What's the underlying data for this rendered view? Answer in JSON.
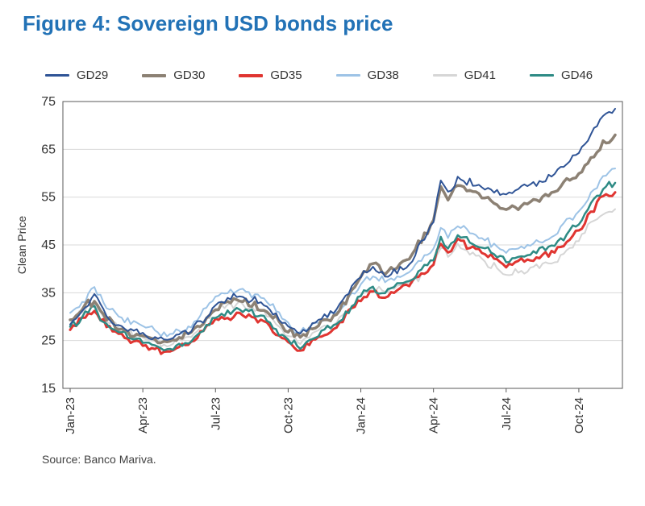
{
  "page": {
    "title": "Figure 4: Sovereign USD bonds price",
    "source": "Source: Banco Mariva.",
    "title_color": "#2272b6"
  },
  "chart_data": {
    "type": "line",
    "title": "Figure 4: Sovereign USD bonds price",
    "xlabel": "",
    "ylabel": "Clean Price",
    "ylim": [
      15,
      75
    ],
    "yticks": [
      15,
      25,
      35,
      45,
      55,
      65,
      75
    ],
    "xlim": [
      -0.3,
      22.8
    ],
    "x_unit": "months since Jan-2023",
    "xtick_positions": [
      0,
      3,
      6,
      9,
      12,
      15,
      18,
      21
    ],
    "xtick_labels": [
      "Jan-23",
      "Apr-23",
      "Jul-23",
      "Oct-23",
      "Jan-24",
      "Apr-24",
      "Jul-24",
      "Oct-24"
    ],
    "grid": "horizontal",
    "legend_position": "top",
    "x": [
      0,
      0.5,
      1,
      1.5,
      2,
      3,
      4,
      5,
      6,
      6.5,
      7,
      8,
      9,
      9.5,
      10,
      11,
      12,
      12.5,
      13,
      14,
      15,
      15.3,
      15.6,
      16,
      17,
      18,
      19,
      20,
      21,
      21.5,
      22,
      22.5
    ],
    "series": [
      {
        "name": "GD29",
        "color": "#2f5496",
        "width": 2,
        "values": [
          28.5,
          31,
          34.5,
          30,
          28,
          26.5,
          25,
          27,
          32.5,
          34,
          34.5,
          32.5,
          28,
          26.5,
          28.5,
          31.5,
          38.5,
          40.5,
          38.5,
          41,
          50,
          58.5,
          56,
          59,
          57,
          55.5,
          57.5,
          60,
          64.5,
          68,
          72,
          73.5
        ]
      },
      {
        "name": "GD30",
        "color": "#8c8174",
        "width": 3.5,
        "values": [
          29.5,
          31.5,
          33.5,
          29.5,
          27.5,
          26,
          24.5,
          26.5,
          31.5,
          33,
          33.5,
          31.5,
          27,
          25.5,
          27.5,
          30.5,
          38.5,
          41,
          39,
          42,
          50,
          57,
          54.5,
          57.5,
          55,
          52.5,
          54,
          56,
          60,
          63.5,
          66.5,
          68
        ]
      },
      {
        "name": "GD35",
        "color": "#e03531",
        "width": 3,
        "values": [
          27.5,
          29.5,
          31.5,
          28,
          26.5,
          24,
          22.5,
          24.5,
          29.5,
          30,
          30.5,
          29,
          24.5,
          23,
          25,
          28,
          33.5,
          35,
          34,
          36.5,
          41,
          45.5,
          43.5,
          46,
          43.5,
          40.5,
          42,
          43.5,
          48,
          52,
          55,
          56
        ]
      },
      {
        "name": "GD38",
        "color": "#9dc3e6",
        "width": 2,
        "values": [
          30.5,
          33,
          36,
          31.5,
          30,
          28,
          26,
          28,
          34,
          35,
          35.5,
          34,
          28.5,
          26.5,
          28.5,
          31,
          36.5,
          38.5,
          37.5,
          39.5,
          44,
          48.5,
          46.5,
          49,
          46.5,
          43.5,
          45,
          47,
          52,
          56,
          59.5,
          61
        ]
      },
      {
        "name": "GD41",
        "color": "#d6d6d6",
        "width": 2,
        "values": [
          29.5,
          31,
          33,
          29,
          27.5,
          25.5,
          24,
          26,
          31.5,
          32.5,
          33,
          31,
          26,
          24.5,
          26.5,
          29,
          34.5,
          36,
          35,
          37,
          40.5,
          44.5,
          42.5,
          45,
          42,
          38.5,
          40,
          41.5,
          46,
          49.5,
          51.5,
          52.5
        ]
      },
      {
        "name": "GD46",
        "color": "#2e8b85",
        "width": 2.5,
        "values": [
          28,
          30,
          32,
          28.5,
          27,
          24.8,
          23,
          25,
          30,
          31,
          31.5,
          30,
          25,
          23.5,
          25.5,
          28.5,
          34.5,
          36,
          35,
          37.5,
          42,
          46.5,
          44.5,
          47,
          44.5,
          41.5,
          43,
          45,
          49.5,
          53.5,
          56.5,
          58
        ]
      }
    ]
  }
}
